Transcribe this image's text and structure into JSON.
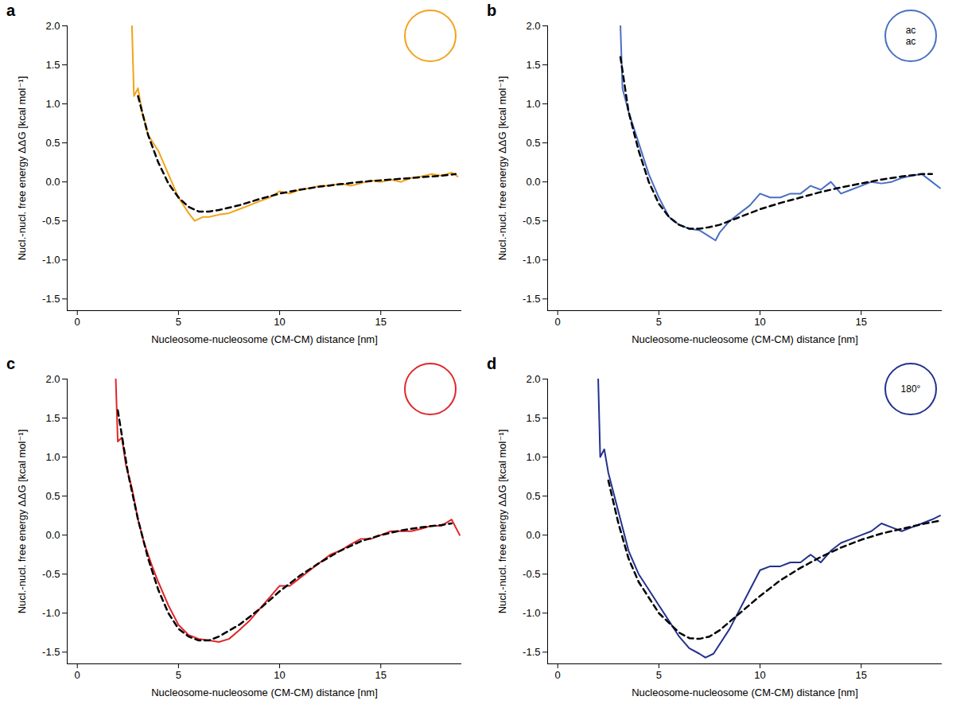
{
  "chart_data": [
    {
      "type": "line",
      "panel": "a",
      "x_label": "Nucleosome-nucleosome (CM-CM) distance [nm]",
      "y_label": "Nucl.-nucl. free energy ΔΔG [kcal mol⁻¹]",
      "xlim": [
        -0.5,
        19
      ],
      "xticks": [
        0,
        5,
        10,
        15
      ],
      "ylim": [
        -1.65,
        2.0
      ],
      "yticks": [
        {
          "value": 2.0,
          "label": "2.0"
        },
        1.5,
        {
          "value": 1.0,
          "label": "1.0"
        },
        0.5,
        {
          "value": 0.0,
          "label": "0.0"
        },
        -0.5,
        {
          "value": -1.0,
          "label": "-1.0"
        },
        -1.5
      ],
      "annotations": [],
      "series": [
        {
          "color": "#f2a31b",
          "line_style": "solid",
          "x": [
            2.7,
            2.8,
            3.0,
            3.2,
            3.5,
            4,
            4.5,
            5,
            5.5,
            5.8,
            6.2,
            6.5,
            7,
            7.5,
            8,
            8.5,
            9,
            9.5,
            10,
            10.5,
            11,
            11.5,
            12,
            12.5,
            13,
            13.5,
            14,
            14.5,
            15,
            15.5,
            16,
            16.5,
            17,
            17.5,
            18,
            18.5,
            18.8
          ],
          "values": [
            2.0,
            1.1,
            1.2,
            0.9,
            0.6,
            0.4,
            0.1,
            -0.2,
            -0.4,
            -0.5,
            -0.45,
            -0.45,
            -0.42,
            -0.4,
            -0.35,
            -0.3,
            -0.25,
            -0.2,
            -0.12,
            -0.15,
            -0.1,
            -0.08,
            -0.05,
            -0.05,
            -0.02,
            -0.05,
            -0.02,
            0.02,
            0.0,
            0.03,
            0.0,
            0.05,
            0.07,
            0.1,
            0.08,
            0.12,
            0.07
          ]
        },
        {
          "color": "#000000",
          "line_style": "dashed",
          "x": [
            3.0,
            3.5,
            4,
            4.5,
            5,
            5.5,
            6,
            6.5,
            7,
            8,
            9,
            10,
            11,
            12,
            13,
            14,
            15,
            16,
            17,
            18,
            18.7
          ],
          "values": [
            1.1,
            0.6,
            0.25,
            -0.02,
            -0.2,
            -0.32,
            -0.38,
            -0.38,
            -0.36,
            -0.3,
            -0.22,
            -0.15,
            -0.1,
            -0.06,
            -0.03,
            0.0,
            0.02,
            0.04,
            0.06,
            0.08,
            0.1
          ]
        }
      ]
    },
    {
      "type": "line",
      "panel": "b",
      "x_label": "Nucleosome-nucleosome (CM-CM) distance [nm]",
      "y_label": "Nucl.-nucl. free energy ΔΔG [kcal mol⁻¹]",
      "xlim": [
        -0.5,
        19
      ],
      "xticks": [
        0,
        5,
        10,
        15
      ],
      "ylim": [
        -1.65,
        2.0
      ],
      "yticks": [
        {
          "value": 2.0,
          "label": "2.0"
        },
        1.5,
        {
          "value": 1.0,
          "label": "1.0"
        },
        0.5,
        {
          "value": 0.0,
          "label": "0.0"
        },
        -0.5,
        {
          "value": -1.0,
          "label": "-1.0"
        },
        -1.5
      ],
      "annotations": [
        "ac",
        "ac"
      ],
      "series": [
        {
          "color": "#4a6fc4",
          "line_style": "solid",
          "x": [
            3.1,
            3.2,
            3.5,
            4,
            4.5,
            5,
            5.5,
            6,
            6.5,
            7,
            7.5,
            7.8,
            8,
            8.5,
            9,
            9.5,
            10,
            10.5,
            11,
            11.5,
            12,
            12.5,
            13,
            13.5,
            14,
            14.5,
            15,
            15.5,
            16,
            16.5,
            17,
            17.5,
            18,
            18.5,
            18.9
          ],
          "values": [
            2.0,
            1.2,
            0.9,
            0.5,
            0.1,
            -0.2,
            -0.45,
            -0.55,
            -0.6,
            -0.62,
            -0.7,
            -0.75,
            -0.65,
            -0.5,
            -0.4,
            -0.3,
            -0.15,
            -0.2,
            -0.2,
            -0.15,
            -0.15,
            -0.05,
            -0.1,
            0.0,
            -0.15,
            -0.1,
            -0.05,
            0.0,
            -0.02,
            0.0,
            0.05,
            0.08,
            0.1,
            0.0,
            -0.08
          ]
        },
        {
          "color": "#000000",
          "line_style": "dashed",
          "x": [
            3.1,
            3.5,
            4,
            4.5,
            5,
            5.5,
            6,
            6.5,
            7,
            7.5,
            8,
            9,
            10,
            11,
            12,
            13,
            14,
            15,
            16,
            17,
            18,
            18.5
          ],
          "values": [
            1.6,
            0.9,
            0.4,
            0.0,
            -0.28,
            -0.45,
            -0.55,
            -0.6,
            -0.6,
            -0.58,
            -0.55,
            -0.45,
            -0.35,
            -0.27,
            -0.2,
            -0.13,
            -0.07,
            -0.02,
            0.03,
            0.07,
            0.1,
            0.1
          ]
        }
      ]
    },
    {
      "type": "line",
      "panel": "c",
      "x_label": "Nucleosome-nucleosome (CM-CM) distance [nm]",
      "y_label": "Nucl.-nucl. free energy ΔΔG [kcal mol⁻¹]",
      "xlim": [
        -0.5,
        19
      ],
      "xticks": [
        0,
        5,
        10,
        15
      ],
      "ylim": [
        -1.65,
        2.0
      ],
      "yticks": [
        {
          "value": 2.0,
          "label": "2.0"
        },
        1.5,
        {
          "value": 1.0,
          "label": "1.0"
        },
        0.5,
        {
          "value": 0.0,
          "label": "0.0"
        },
        -0.5,
        {
          "value": -1.0,
          "label": "-1.0"
        },
        -1.5
      ],
      "annotations": [],
      "series": [
        {
          "color": "#e0262a",
          "line_style": "solid",
          "x": [
            1.9,
            2.0,
            2.2,
            2.4,
            2.7,
            3.0,
            3.3,
            3.7,
            4,
            4.5,
            5,
            5.5,
            6,
            6.5,
            7,
            7.5,
            8,
            8.5,
            9,
            9.5,
            10,
            10.5,
            11,
            11.5,
            12,
            12.5,
            13,
            13.5,
            14,
            14.5,
            15,
            15.5,
            16,
            16.5,
            17,
            17.5,
            18,
            18.5,
            18.9
          ],
          "values": [
            2.0,
            1.2,
            1.25,
            0.9,
            0.6,
            0.2,
            -0.1,
            -0.4,
            -0.6,
            -0.9,
            -1.15,
            -1.28,
            -1.33,
            -1.35,
            -1.37,
            -1.33,
            -1.22,
            -1.1,
            -0.95,
            -0.8,
            -0.65,
            -0.65,
            -0.55,
            -0.45,
            -0.35,
            -0.25,
            -0.2,
            -0.12,
            -0.05,
            -0.05,
            0.0,
            0.05,
            0.05,
            0.05,
            0.08,
            0.12,
            0.12,
            0.2,
            0.0
          ]
        },
        {
          "color": "#000000",
          "line_style": "dashed",
          "x": [
            2.0,
            2.5,
            3,
            3.5,
            4,
            4.5,
            5,
            5.5,
            6,
            6.5,
            7,
            8,
            9,
            10,
            11,
            12,
            13,
            14,
            15,
            16,
            17,
            18,
            18.5
          ],
          "values": [
            1.6,
            0.8,
            0.2,
            -0.3,
            -0.7,
            -1.0,
            -1.2,
            -1.3,
            -1.35,
            -1.35,
            -1.3,
            -1.15,
            -0.95,
            -0.72,
            -0.52,
            -0.35,
            -0.2,
            -0.08,
            0.0,
            0.06,
            0.1,
            0.13,
            0.15
          ]
        }
      ]
    },
    {
      "type": "line",
      "panel": "d",
      "x_label": "Nucleosome-nucleosome (CM-CM) distance [nm]",
      "y_label": "Nucl.-nucl. free energy ΔΔG [kcal mol⁻¹]",
      "xlim": [
        -0.5,
        19
      ],
      "xticks": [
        0,
        5,
        10,
        15
      ],
      "ylim": [
        -1.65,
        2.0
      ],
      "yticks": [
        {
          "value": 2.0,
          "label": "2.0"
        },
        1.5,
        {
          "value": 1.0,
          "label": "1.0"
        },
        0.5,
        {
          "value": 0.0,
          "label": "0.0"
        },
        -0.5,
        {
          "value": -1.0,
          "label": "-1.0"
        },
        -1.5
      ],
      "annotations": [
        "180°"
      ],
      "series": [
        {
          "color": "#23318f",
          "line_style": "solid",
          "x": [
            2.0,
            2.1,
            2.3,
            2.5,
            3,
            3.5,
            4,
            4.5,
            5,
            5.5,
            6,
            6.5,
            7,
            7.3,
            7.7,
            8,
            8.5,
            9,
            9.5,
            10,
            10.5,
            11,
            11.5,
            12,
            12.5,
            13,
            13.5,
            14,
            14.5,
            15,
            15.5,
            16,
            16.5,
            17,
            17.5,
            18,
            18.5,
            18.9
          ],
          "values": [
            2.0,
            1.0,
            1.1,
            0.8,
            0.3,
            -0.2,
            -0.5,
            -0.7,
            -0.9,
            -1.1,
            -1.3,
            -1.45,
            -1.52,
            -1.57,
            -1.52,
            -1.4,
            -1.2,
            -0.95,
            -0.7,
            -0.45,
            -0.4,
            -0.4,
            -0.35,
            -0.35,
            -0.25,
            -0.35,
            -0.2,
            -0.1,
            -0.05,
            0.0,
            0.05,
            0.15,
            0.1,
            0.05,
            0.1,
            0.15,
            0.2,
            0.25
          ]
        },
        {
          "color": "#000000",
          "line_style": "dashed",
          "x": [
            2.5,
            3,
            3.5,
            4,
            5,
            6,
            6.5,
            7,
            7.5,
            8,
            9,
            10,
            11,
            12,
            13,
            14,
            15,
            16,
            17,
            18,
            18.8
          ],
          "values": [
            0.7,
            0.15,
            -0.3,
            -0.6,
            -1.0,
            -1.25,
            -1.32,
            -1.33,
            -1.3,
            -1.22,
            -1.0,
            -0.78,
            -0.58,
            -0.42,
            -0.28,
            -0.16,
            -0.06,
            0.02,
            0.08,
            0.14,
            0.18
          ]
        }
      ]
    }
  ]
}
